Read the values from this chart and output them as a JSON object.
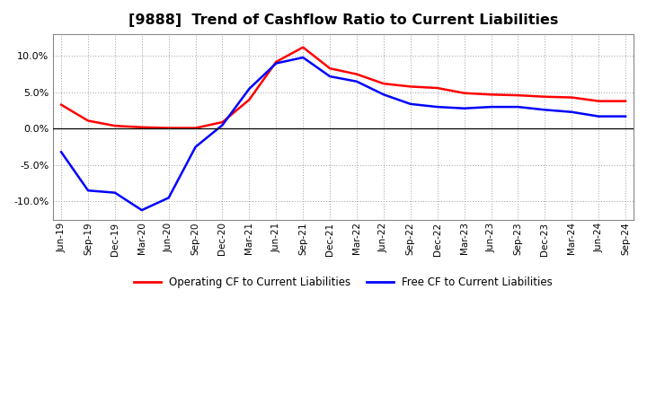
{
  "title": "[9888]  Trend of Cashflow Ratio to Current Liabilities",
  "x_labels": [
    "Jun-19",
    "Sep-19",
    "Dec-19",
    "Mar-20",
    "Jun-20",
    "Sep-20",
    "Dec-20",
    "Mar-21",
    "Jun-21",
    "Sep-21",
    "Dec-21",
    "Mar-22",
    "Jun-22",
    "Sep-22",
    "Dec-22",
    "Mar-23",
    "Jun-23",
    "Sep-23",
    "Dec-23",
    "Mar-24",
    "Jun-24",
    "Sep-24"
  ],
  "operating_cf": [
    3.3,
    1.1,
    0.4,
    0.2,
    0.1,
    0.1,
    0.9,
    4.0,
    9.2,
    11.2,
    8.3,
    7.5,
    6.2,
    5.8,
    5.6,
    4.9,
    4.7,
    4.6,
    4.4,
    4.3,
    3.8,
    3.8
  ],
  "free_cf": [
    -3.2,
    -8.5,
    -8.8,
    -11.2,
    -9.5,
    -2.5,
    0.5,
    5.5,
    9.0,
    9.8,
    7.2,
    6.5,
    4.7,
    3.4,
    3.0,
    2.8,
    3.0,
    3.0,
    2.6,
    2.3,
    1.7,
    1.7
  ],
  "operating_color": "#ff0000",
  "free_color": "#0000ff",
  "ylim": [
    -12.5,
    13.0
  ],
  "yticks": [
    -10,
    -5,
    0,
    5,
    10
  ],
  "background_color": "#ffffff",
  "plot_bg_color": "#ffffff",
  "grid_color": "#999999",
  "title_fontsize": 11.5,
  "legend_labels": [
    "Operating CF to Current Liabilities",
    "Free CF to Current Liabilities"
  ]
}
